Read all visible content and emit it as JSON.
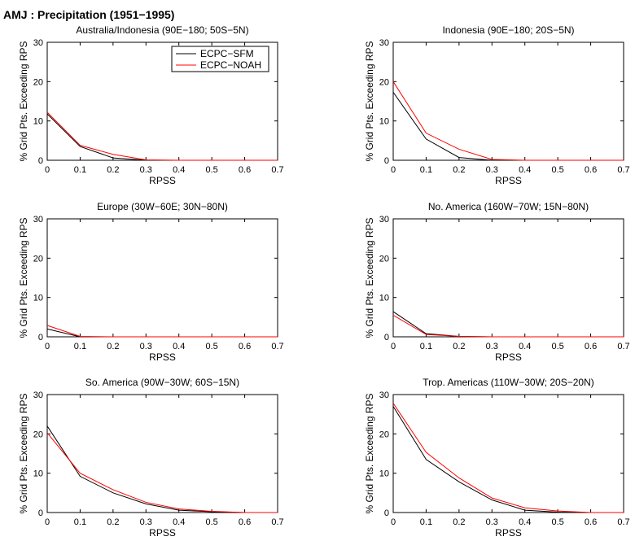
{
  "figure_title": "AMJ : Precipitation (1951−1995)",
  "colors": {
    "ecpc_sfm": "#000000",
    "ecpc_noah": "#ff0000"
  },
  "legend": {
    "placement": "top-right of first panel",
    "entries": [
      {
        "label": "ECPC−SFM",
        "color": "#000000"
      },
      {
        "label": "ECPC−NOAH",
        "color": "#ff0000"
      }
    ]
  },
  "chart_data": [
    {
      "type": "line",
      "title": "Australia/Indonesia (90E−180; 50S−5N)",
      "xlabel": "RPSS",
      "ylabel": "% Grid Pts. Exceeding RPS",
      "xlim": [
        0,
        0.7
      ],
      "ylim": [
        0,
        30
      ],
      "xticks": [
        "0",
        "0.1",
        "0.2",
        "0.3",
        "0.4",
        "0.5",
        "0.6",
        "0.7"
      ],
      "yticks": [
        "0",
        "10",
        "20",
        "30"
      ],
      "x": [
        0,
        0.1,
        0.2,
        0.3,
        0.4,
        0.5,
        0.6,
        0.7
      ],
      "series": [
        {
          "name": "ECPC−SFM",
          "values": [
            11.8,
            3.5,
            0.6,
            0,
            0,
            0,
            0,
            0
          ]
        },
        {
          "name": "ECPC−NOAH",
          "values": [
            12.2,
            3.8,
            1.5,
            0.1,
            0,
            0,
            0,
            0
          ]
        }
      ]
    },
    {
      "type": "line",
      "title": "Indonesia (90E−180; 20S−5N)",
      "xlabel": "RPSS",
      "ylabel": "% Grid Pts. Exceeding RPS",
      "xlim": [
        0,
        0.7
      ],
      "ylim": [
        0,
        30
      ],
      "xticks": [
        "0",
        "0.1",
        "0.2",
        "0.3",
        "0.4",
        "0.5",
        "0.6",
        "0.7"
      ],
      "yticks": [
        "0",
        "10",
        "20",
        "30"
      ],
      "x": [
        0,
        0.1,
        0.2,
        0.3,
        0.4,
        0.5,
        0.6,
        0.7
      ],
      "series": [
        {
          "name": "ECPC−SFM",
          "values": [
            17.3,
            5.4,
            0.7,
            0,
            0,
            0,
            0,
            0
          ]
        },
        {
          "name": "ECPC−NOAH",
          "values": [
            20.0,
            6.9,
            2.8,
            0.2,
            0,
            0,
            0,
            0
          ]
        }
      ]
    },
    {
      "type": "line",
      "title": "Europe (30W−60E; 30N−80N)",
      "xlabel": "RPSS",
      "ylabel": "% Grid Pts. Exceeding RPS",
      "xlim": [
        0,
        0.7
      ],
      "ylim": [
        0,
        30
      ],
      "xticks": [
        "0",
        "0.1",
        "0.2",
        "0.3",
        "0.4",
        "0.5",
        "0.6",
        "0.7"
      ],
      "yticks": [
        "0",
        "10",
        "20",
        "30"
      ],
      "x": [
        0,
        0.1,
        0.2,
        0.3,
        0.4,
        0.5,
        0.6,
        0.7
      ],
      "series": [
        {
          "name": "ECPC−SFM",
          "values": [
            2.0,
            0,
            0,
            0,
            0,
            0,
            0,
            0
          ]
        },
        {
          "name": "ECPC−NOAH",
          "values": [
            2.9,
            0.1,
            0,
            0,
            0,
            0,
            0,
            0
          ]
        }
      ]
    },
    {
      "type": "line",
      "title": "No. America (160W−70W; 15N−80N)",
      "xlabel": "RPSS",
      "ylabel": "% Grid Pts. Exceeding RPS",
      "xlim": [
        0,
        0.7
      ],
      "ylim": [
        0,
        30
      ],
      "xticks": [
        "0",
        "0.1",
        "0.2",
        "0.3",
        "0.4",
        "0.5",
        "0.6",
        "0.7"
      ],
      "yticks": [
        "0",
        "10",
        "20",
        "30"
      ],
      "x": [
        0,
        0.1,
        0.2,
        0.3,
        0.4,
        0.5,
        0.6,
        0.7
      ],
      "series": [
        {
          "name": "ECPC−SFM",
          "values": [
            6.4,
            0.8,
            0.1,
            0,
            0,
            0,
            0,
            0
          ]
        },
        {
          "name": "ECPC−NOAH",
          "values": [
            5.5,
            0.6,
            0.1,
            0,
            0,
            0,
            0,
            0
          ]
        }
      ]
    },
    {
      "type": "line",
      "title": "So. America (90W−30W; 60S−15N)",
      "xlabel": "RPSS",
      "ylabel": "% Grid Pts. Exceeding RPS",
      "xlim": [
        0,
        0.7
      ],
      "ylim": [
        0,
        30
      ],
      "xticks": [
        "0",
        "0.1",
        "0.2",
        "0.3",
        "0.4",
        "0.5",
        "0.6",
        "0.7"
      ],
      "yticks": [
        "0",
        "10",
        "20",
        "30"
      ],
      "x": [
        0,
        0.1,
        0.2,
        0.3,
        0.4,
        0.5,
        0.6,
        0.7
      ],
      "series": [
        {
          "name": "ECPC−SFM",
          "values": [
            22.0,
            9.2,
            5.0,
            2.2,
            0.6,
            0.2,
            0,
            0
          ]
        },
        {
          "name": "ECPC−NOAH",
          "values": [
            20.3,
            10.0,
            5.8,
            2.6,
            0.9,
            0.3,
            0,
            0
          ]
        }
      ]
    },
    {
      "type": "line",
      "title": "Trop. Americas (110W−30W; 20S−20N)",
      "xlabel": "RPSS",
      "ylabel": "% Grid Pts. Exceeding RPS",
      "xlim": [
        0,
        0.7
      ],
      "ylim": [
        0,
        30
      ],
      "xticks": [
        "0",
        "0.1",
        "0.2",
        "0.3",
        "0.4",
        "0.5",
        "0.6",
        "0.7"
      ],
      "yticks": [
        "0",
        "10",
        "20",
        "30"
      ],
      "x": [
        0,
        0.1,
        0.2,
        0.3,
        0.4,
        0.5,
        0.6,
        0.7
      ],
      "series": [
        {
          "name": "ECPC−SFM",
          "values": [
            27.0,
            13.5,
            7.8,
            3.2,
            0.6,
            0.1,
            0,
            0
          ]
        },
        {
          "name": "ECPC−NOAH",
          "values": [
            27.8,
            15.3,
            8.8,
            3.7,
            1.2,
            0.4,
            0,
            0
          ]
        }
      ]
    }
  ]
}
